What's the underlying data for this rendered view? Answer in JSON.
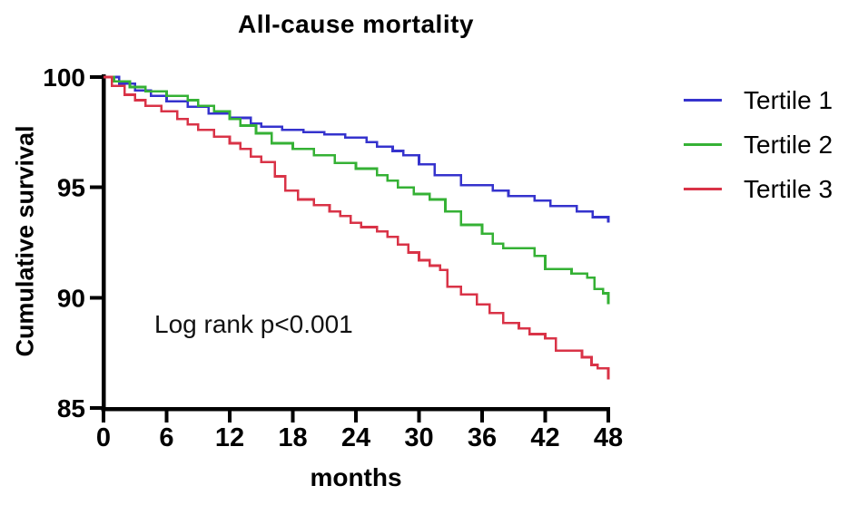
{
  "chart_data": {
    "type": "line",
    "subtype": "kaplan-meier-step",
    "title": "All-cause mortality",
    "xlabel": "months",
    "ylabel": "Cumulative survival",
    "annotation": "Log rank p<0.001",
    "xlim": [
      0,
      48
    ],
    "ylim": [
      85,
      100
    ],
    "xticks": [
      0,
      6,
      12,
      18,
      24,
      30,
      36,
      42,
      48
    ],
    "yticks": [
      85,
      90,
      95,
      100
    ],
    "grid": false,
    "legend_position": "right",
    "axis_color": "#000000",
    "series": [
      {
        "name": "Tertile 1",
        "color": "#3533cd",
        "points": [
          [
            0,
            100
          ],
          [
            1.5,
            99.7
          ],
          [
            3,
            99.4
          ],
          [
            4.5,
            99.15
          ],
          [
            6,
            98.9
          ],
          [
            8,
            98.65
          ],
          [
            10,
            98.35
          ],
          [
            12,
            98.15
          ],
          [
            14,
            97.9
          ],
          [
            15,
            97.75
          ],
          [
            17,
            97.6
          ],
          [
            19,
            97.5
          ],
          [
            21,
            97.4
          ],
          [
            23,
            97.25
          ],
          [
            25,
            97.05
          ],
          [
            26,
            96.85
          ],
          [
            27.5,
            96.65
          ],
          [
            28.5,
            96.45
          ],
          [
            30,
            96.05
          ],
          [
            31.5,
            95.55
          ],
          [
            34,
            95.1
          ],
          [
            37,
            94.85
          ],
          [
            38.5,
            94.6
          ],
          [
            41,
            94.4
          ],
          [
            42.5,
            94.15
          ],
          [
            45,
            93.9
          ],
          [
            46.5,
            93.65
          ],
          [
            48,
            93.4
          ]
        ]
      },
      {
        "name": "Tertile 2",
        "color": "#35b135",
        "points": [
          [
            0,
            100
          ],
          [
            1,
            99.8
          ],
          [
            2.5,
            99.55
          ],
          [
            4,
            99.35
          ],
          [
            6,
            99.15
          ],
          [
            8,
            98.95
          ],
          [
            9,
            98.7
          ],
          [
            10.5,
            98.45
          ],
          [
            12,
            98.1
          ],
          [
            13,
            97.8
          ],
          [
            14.5,
            97.45
          ],
          [
            16,
            97.0
          ],
          [
            18,
            96.75
          ],
          [
            20,
            96.45
          ],
          [
            22,
            96.1
          ],
          [
            24,
            95.85
          ],
          [
            26,
            95.55
          ],
          [
            27,
            95.3
          ],
          [
            28,
            95.0
          ],
          [
            29.5,
            94.7
          ],
          [
            31,
            94.45
          ],
          [
            32.5,
            93.9
          ],
          [
            34,
            93.3
          ],
          [
            36,
            92.9
          ],
          [
            37,
            92.45
          ],
          [
            38,
            92.25
          ],
          [
            41,
            91.9
          ],
          [
            42,
            91.3
          ],
          [
            44.5,
            91.1
          ],
          [
            46,
            90.9
          ],
          [
            46.7,
            90.4
          ],
          [
            47.5,
            90.2
          ],
          [
            48,
            89.7
          ]
        ]
      },
      {
        "name": "Tertile 3",
        "color": "#d93347",
        "points": [
          [
            0,
            100
          ],
          [
            0.8,
            99.6
          ],
          [
            2,
            99.2
          ],
          [
            3,
            98.95
          ],
          [
            4,
            98.7
          ],
          [
            5.5,
            98.45
          ],
          [
            7,
            98.1
          ],
          [
            8,
            97.85
          ],
          [
            9,
            97.6
          ],
          [
            10.5,
            97.3
          ],
          [
            12,
            97.0
          ],
          [
            13,
            96.75
          ],
          [
            14,
            96.4
          ],
          [
            15,
            96.15
          ],
          [
            16.3,
            95.5
          ],
          [
            17.3,
            94.85
          ],
          [
            18.5,
            94.45
          ],
          [
            20,
            94.2
          ],
          [
            21.5,
            93.9
          ],
          [
            22.5,
            93.7
          ],
          [
            23.5,
            93.4
          ],
          [
            24.5,
            93.2
          ],
          [
            26,
            93.0
          ],
          [
            27,
            92.75
          ],
          [
            28,
            92.4
          ],
          [
            29,
            92.05
          ],
          [
            30,
            91.7
          ],
          [
            31,
            91.45
          ],
          [
            32,
            91.25
          ],
          [
            32.7,
            90.5
          ],
          [
            34,
            90.15
          ],
          [
            35.5,
            89.7
          ],
          [
            36.7,
            89.3
          ],
          [
            38,
            88.85
          ],
          [
            39.5,
            88.6
          ],
          [
            40.5,
            88.35
          ],
          [
            42,
            88.15
          ],
          [
            43,
            87.6
          ],
          [
            45.5,
            87.3
          ],
          [
            46.4,
            86.95
          ],
          [
            47,
            86.8
          ],
          [
            48,
            86.3
          ]
        ]
      }
    ]
  }
}
